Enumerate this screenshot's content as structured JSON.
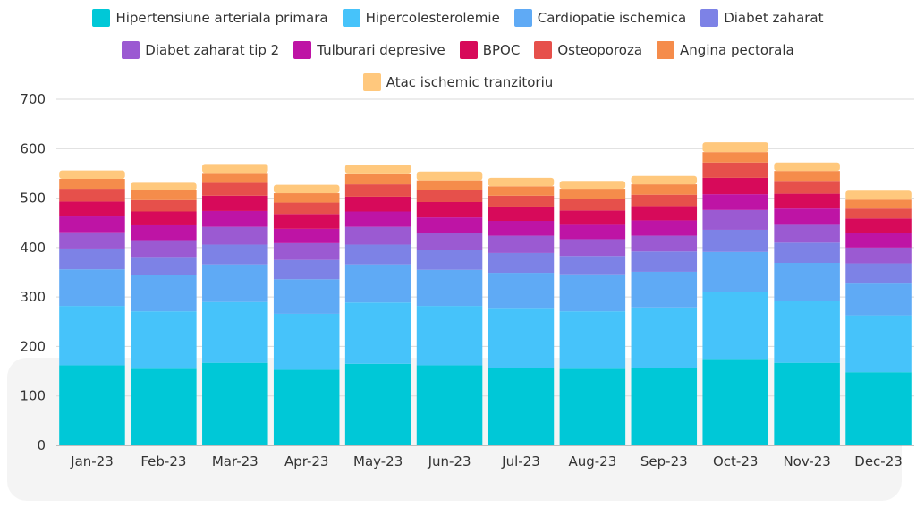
{
  "chart_data": {
    "type": "bar",
    "stacked": true,
    "categories": [
      "Jan-23",
      "Feb-23",
      "Mar-23",
      "Apr-23",
      "May-23",
      "Jun-23",
      "Jul-23",
      "Aug-23",
      "Sep-23",
      "Oct-23",
      "Nov-23",
      "Dec-23"
    ],
    "ylim": [
      0,
      700
    ],
    "yticks": [
      0,
      100,
      200,
      300,
      400,
      500,
      600,
      700
    ],
    "grid": true,
    "legend_position": "top",
    "series": [
      {
        "name": "Hipertensiune arteriala primara",
        "color": "#00c8d7",
        "values": [
          162,
          155,
          167,
          153,
          165,
          162,
          157,
          155,
          157,
          175,
          167,
          148
        ]
      },
      {
        "name": "Hipercolesterolemie",
        "color": "#46c3fa",
        "values": [
          120,
          116,
          123,
          113,
          124,
          120,
          121,
          116,
          122,
          135,
          126,
          115
        ]
      },
      {
        "name": "Cardiopatie ischemica",
        "color": "#5faaf5",
        "values": [
          74,
          73,
          76,
          70,
          77,
          73,
          71,
          75,
          72,
          81,
          76,
          66
        ]
      },
      {
        "name": "Diabet zaharat",
        "color": "#7d82e6",
        "values": [
          42,
          37,
          40,
          39,
          40,
          41,
          40,
          37,
          41,
          45,
          41,
          39
        ]
      },
      {
        "name": "Diabet zaharat tip 2",
        "color": "#9b5ad2",
        "values": [
          33,
          34,
          36,
          34,
          36,
          34,
          35,
          34,
          32,
          40,
          36,
          32
        ]
      },
      {
        "name": "Tulburari depresive",
        "color": "#be14a5",
        "values": [
          32,
          30,
          32,
          29,
          31,
          31,
          30,
          29,
          31,
          32,
          33,
          30
        ]
      },
      {
        "name": "BPOC",
        "color": "#d70a5a",
        "values": [
          30,
          28,
          31,
          30,
          30,
          31,
          29,
          29,
          29,
          33,
          30,
          29
        ]
      },
      {
        "name": "Osteoporoza",
        "color": "#e6504b",
        "values": [
          26,
          23,
          26,
          23,
          25,
          25,
          22,
          23,
          23,
          31,
          26,
          20
        ]
      },
      {
        "name": "Angina pectorala",
        "color": "#f58c4b",
        "values": [
          20,
          20,
          20,
          19,
          22,
          19,
          19,
          21,
          21,
          21,
          20,
          18
        ]
      },
      {
        "name": "Atac ischemic tranzitoriu",
        "color": "#ffc87d",
        "values": [
          17,
          15,
          18,
          17,
          18,
          18,
          17,
          16,
          17,
          20,
          17,
          18
        ]
      }
    ]
  }
}
